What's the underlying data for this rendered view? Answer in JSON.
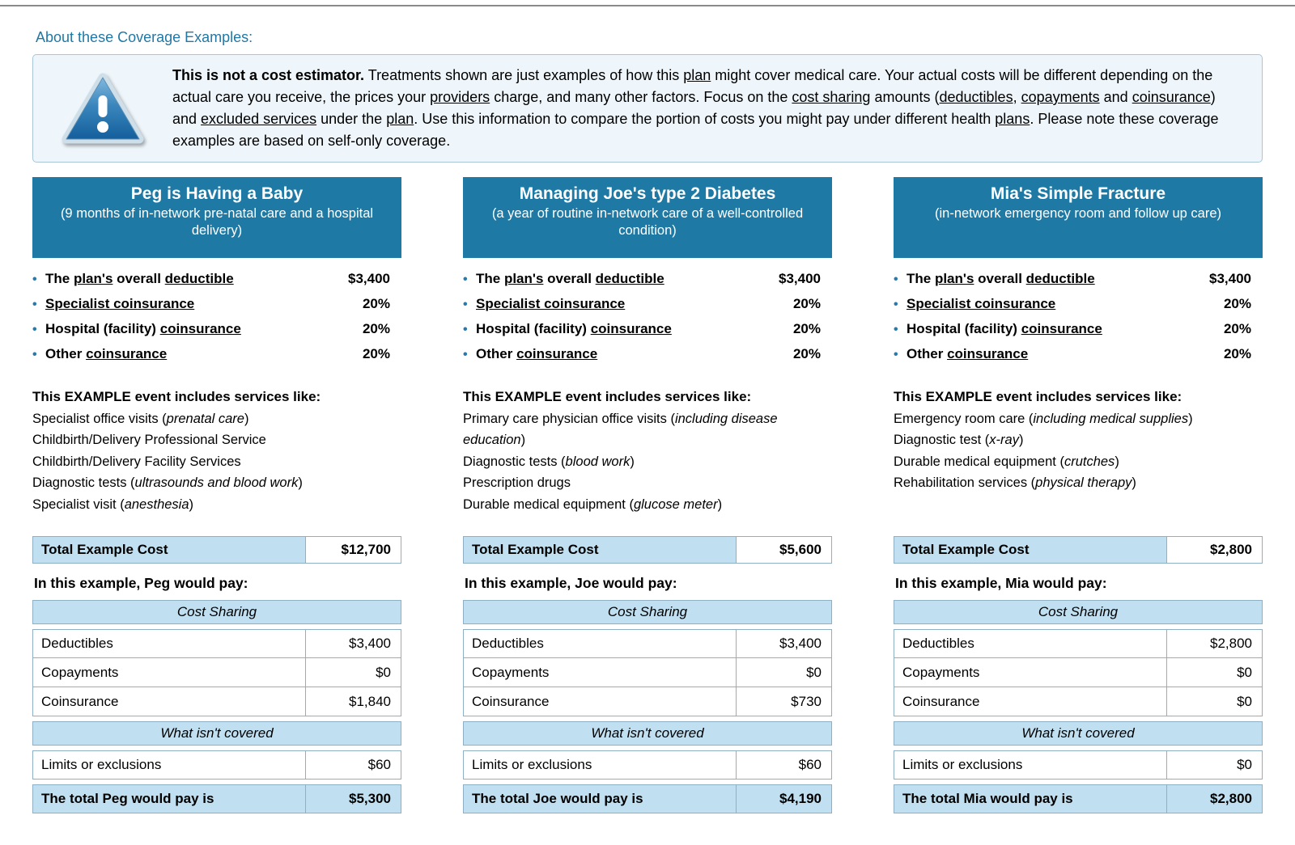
{
  "page": {
    "heading": "About these Coverage Examples:"
  },
  "icons": {
    "bullet": "•"
  },
  "disclaimer": {
    "icon": "warning-triangle-icon",
    "text": "**This is not a cost estimator.**  Treatments shown are just examples of how this __plan__ might cover medical care.  Your actual costs will be different depending on the actual care you receive, the prices your __providers__ charge, and many other factors.  Focus on the __cost sharing__ amounts (__deductibles__, __copayments__ and __coinsurance__) and __excluded services__ under the __plan__.  Use this information to compare the portion of costs you might pay under different health __plans__.  Please note these coverage examples are based on self-only coverage."
  },
  "labels": {
    "services_heading": "This EXAMPLE event includes services like:",
    "total_example_cost": "Total Example Cost",
    "cost_sharing": "Cost Sharing",
    "not_covered": "What isn't covered",
    "deductibles": "Deductibles",
    "copayments": "Copayments",
    "coinsurance": "Coinsurance",
    "limits_or_exclusions": "Limits or exclusions"
  },
  "examples": [
    {
      "title": "Peg is Having a Baby",
      "subtitle": "(9 months of in-network pre-natal care and a hospital delivery)",
      "plan_info": [
        {
          "label": "The __plan's__ overall __deductible__",
          "value": "$3,400"
        },
        {
          "label": "__Specialist coinsurance__",
          "value": "20%"
        },
        {
          "label": "Hospital (facility) __coinsurance__",
          "value": "20%"
        },
        {
          "label": "Other __coinsurance__",
          "value": "20%"
        }
      ],
      "services": [
        "Specialist office visits (*prenatal care*)",
        "Childbirth/Delivery Professional Service",
        "Childbirth/Delivery Facility Services",
        "Diagnostic tests (*ultrasounds and blood work*)",
        "Specialist visit (*anesthesia*)"
      ],
      "total_example_cost": "$12,700",
      "pay_intro": "In this example, Peg would pay:",
      "costs": {
        "deductibles": "$3,400",
        "copayments": "$0",
        "coinsurance": "$1,840",
        "limits_or_exclusions": "$60"
      },
      "total_label": "The total Peg would pay is",
      "total_value": "$5,300"
    },
    {
      "title": "Managing Joe's type 2 Diabetes",
      "subtitle": "(a year of routine in-network care of a well-controlled condition)",
      "plan_info": [
        {
          "label": "The __plan's__ overall __deductible__",
          "value": "$3,400"
        },
        {
          "label": "__Specialist coinsurance__",
          "value": "20%"
        },
        {
          "label": "Hospital (facility) __coinsurance__",
          "value": "20%"
        },
        {
          "label": "Other __coinsurance__",
          "value": "20%"
        }
      ],
      "services": [
        "Primary care physician office visits (*including disease education*)",
        "Diagnostic tests (*blood work*)",
        "Prescription drugs",
        "Durable medical equipment (*glucose meter*)"
      ],
      "total_example_cost": "$5,600",
      "pay_intro": "In this example, Joe would pay:",
      "costs": {
        "deductibles": "$3,400",
        "copayments": "$0",
        "coinsurance": "$730",
        "limits_or_exclusions": "$60"
      },
      "total_label": "The total Joe would pay is",
      "total_value": "$4,190"
    },
    {
      "title": "Mia's Simple Fracture",
      "subtitle": "(in-network emergency room and follow up care)",
      "plan_info": [
        {
          "label": "The __plan's__ overall __deductible__",
          "value": "$3,400"
        },
        {
          "label": "__Specialist coinsurance__",
          "value": "20%"
        },
        {
          "label": "Hospital (facility) __coinsurance__",
          "value": "20%"
        },
        {
          "label": "Other __coinsurance__",
          "value": "20%"
        }
      ],
      "services": [
        "Emergency room care (*including medical supplies*)",
        "Diagnostic test (*x-ray*)",
        "Durable medical equipment (*crutches*)",
        "Rehabilitation services (*physical therapy*)"
      ],
      "total_example_cost": "$2,800",
      "pay_intro": "In this example, Mia would pay:",
      "costs": {
        "deductibles": "$2,800",
        "copayments": "$0",
        "coinsurance": "$0",
        "limits_or_exclusions": "$0"
      },
      "total_label": "The total Mia would pay is",
      "total_value": "$2,800"
    }
  ]
}
